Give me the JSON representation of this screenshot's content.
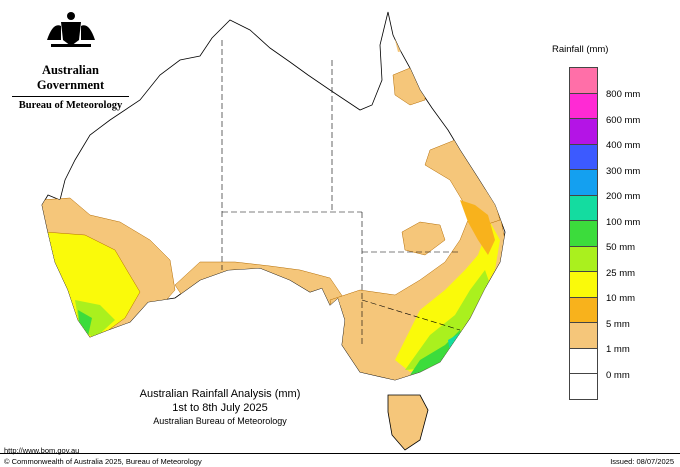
{
  "logo": {
    "government": "Australian Government",
    "bureau": "Bureau of Meteorology"
  },
  "legend": {
    "title": "Rainfall (mm)",
    "items": [
      {
        "label": "",
        "color": "#ff6fa8"
      },
      {
        "label": "800 mm",
        "color": "#ff2ad4"
      },
      {
        "label": "600 mm",
        "color": "#b414e6"
      },
      {
        "label": "400 mm",
        "color": "#3c5aff"
      },
      {
        "label": "300 mm",
        "color": "#14a0f0"
      },
      {
        "label": "200 mm",
        "color": "#14dca0"
      },
      {
        "label": "100 mm",
        "color": "#3cdc3c"
      },
      {
        "label": "50 mm",
        "color": "#aaf01e"
      },
      {
        "label": "25 mm",
        "color": "#fafa0a"
      },
      {
        "label": "10 mm",
        "color": "#f8b21c"
      },
      {
        "label": "5 mm",
        "color": "#f5c67a"
      },
      {
        "label": "1 mm",
        "color": "#ffffff"
      },
      {
        "label": "0 mm",
        "color": "#ffffff"
      }
    ]
  },
  "title": {
    "line1": "Australian Rainfall Analysis (mm)",
    "line2": "1st to 8th July 2025",
    "line3": "Australian Bureau of Meteorology"
  },
  "footer": {
    "url": "http://www.bom.gov.au",
    "copyright": "© Commonwealth of Australia 2025, Bureau of Meteorology",
    "issued": "Issued: 08/07/2025"
  }
}
